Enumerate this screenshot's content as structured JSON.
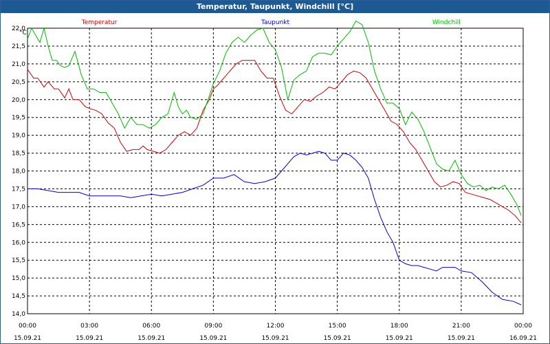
{
  "window": {
    "title": "Temperatur, Taupunkt, Windchill [°C]"
  },
  "chart_data": {
    "type": "line",
    "title": "Temperatur, Taupunkt, Windchill [°C]",
    "ylabel": "°C",
    "ylim": [
      14.0,
      22.0
    ],
    "yticks": [
      14.0,
      14.5,
      15.0,
      15.5,
      16.0,
      16.5,
      17.0,
      17.5,
      18.0,
      18.5,
      19.0,
      19.5,
      20.0,
      20.5,
      21.0,
      21.5,
      22.0
    ],
    "ytick_labels": [
      "14,0",
      "14,5",
      "15,0",
      "15,5",
      "16,0",
      "16,5",
      "17,0",
      "17,5",
      "18,0",
      "18,5",
      "19,0",
      "19,5",
      "20,0",
      "20,5",
      "21,0",
      "21,5",
      "22,0"
    ],
    "xlim": [
      0,
      24
    ],
    "xticks": [
      0,
      3,
      6,
      9,
      12,
      15,
      18,
      21,
      24
    ],
    "xtick_time_labels": [
      "00:00",
      "03:00",
      "06:00",
      "09:00",
      "12:00",
      "15:00",
      "18:00",
      "21:00",
      "00:00"
    ],
    "xtick_date_labels": [
      "15.09.21",
      "15.09.21",
      "15.09.21",
      "15.09.21",
      "15.09.21",
      "15.09.21",
      "15.09.21",
      "15.09.21",
      "16.09.21"
    ],
    "grid": true,
    "series": [
      {
        "name": "Temperatur",
        "color": "#cc0000",
        "x": [
          0,
          0.3,
          0.5,
          0.8,
          1.0,
          1.3,
          1.5,
          1.8,
          2.0,
          2.2,
          2.5,
          2.8,
          3.0,
          3.3,
          3.6,
          3.9,
          4.2,
          4.5,
          4.8,
          5.1,
          5.4,
          5.6,
          5.8,
          6.1,
          6.4,
          6.7,
          7.0,
          7.3,
          7.6,
          7.9,
          8.2,
          8.5,
          8.8,
          9.0,
          9.2,
          9.5,
          9.8,
          10.1,
          10.4,
          10.7,
          11.0,
          11.3,
          11.6,
          11.9,
          12.2,
          12.5,
          12.8,
          13.1,
          13.4,
          13.7,
          14.0,
          14.3,
          14.6,
          14.9,
          15.2,
          15.5,
          15.8,
          16.1,
          16.4,
          16.7,
          17.0,
          17.3,
          17.6,
          17.9,
          18.2,
          18.5,
          18.8,
          19.1,
          19.4,
          19.7,
          20.0,
          20.3,
          20.6,
          20.9,
          21.2,
          21.5,
          21.8,
          22.1,
          22.4,
          22.7,
          23.0,
          23.3,
          23.6,
          23.9
        ],
        "values": [
          20.85,
          20.6,
          20.6,
          20.35,
          20.5,
          20.3,
          20.3,
          20.05,
          20.3,
          20.0,
          20.0,
          19.8,
          19.75,
          19.7,
          19.6,
          19.35,
          19.2,
          18.8,
          18.55,
          18.6,
          18.6,
          18.7,
          18.6,
          18.55,
          18.5,
          18.6,
          18.8,
          19.0,
          19.1,
          19.0,
          19.2,
          19.7,
          20.0,
          20.3,
          20.4,
          20.6,
          20.8,
          21.0,
          21.1,
          21.1,
          21.1,
          20.8,
          20.6,
          20.6,
          20.1,
          19.7,
          19.6,
          19.8,
          20.0,
          19.95,
          20.1,
          20.2,
          20.35,
          20.3,
          20.5,
          20.7,
          20.8,
          20.75,
          20.6,
          20.3,
          20.0,
          19.7,
          19.4,
          19.3,
          19.1,
          18.8,
          18.6,
          18.3,
          18.0,
          17.7,
          17.55,
          17.6,
          17.7,
          17.65,
          17.4,
          17.35,
          17.3,
          17.25,
          17.2,
          17.1,
          17.0,
          16.9,
          16.75,
          16.55
        ]
      },
      {
        "name": "Taupunkt",
        "color": "#0000cc",
        "x": [
          0,
          0.5,
          1.0,
          1.5,
          2.0,
          2.5,
          3.0,
          3.5,
          4.0,
          4.5,
          5.0,
          5.5,
          6.0,
          6.5,
          7.0,
          7.5,
          8.0,
          8.5,
          9.0,
          9.5,
          10.0,
          10.5,
          11.0,
          11.5,
          12.0,
          12.3,
          12.6,
          12.9,
          13.2,
          13.5,
          13.8,
          14.1,
          14.4,
          14.7,
          15.0,
          15.3,
          15.6,
          15.9,
          16.2,
          16.5,
          16.8,
          17.1,
          17.4,
          17.7,
          18.0,
          18.3,
          18.6,
          18.9,
          19.2,
          19.5,
          19.8,
          20.1,
          20.4,
          20.7,
          21.0,
          21.5,
          22.0,
          22.5,
          23.0,
          23.5,
          23.9
        ],
        "values": [
          17.5,
          17.5,
          17.45,
          17.4,
          17.4,
          17.4,
          17.3,
          17.3,
          17.3,
          17.3,
          17.25,
          17.3,
          17.35,
          17.3,
          17.35,
          17.4,
          17.5,
          17.6,
          17.8,
          17.8,
          17.9,
          17.7,
          17.65,
          17.7,
          17.8,
          18.0,
          18.2,
          18.4,
          18.5,
          18.45,
          18.5,
          18.55,
          18.5,
          18.3,
          18.3,
          18.5,
          18.45,
          18.3,
          18.1,
          17.8,
          17.2,
          16.7,
          16.3,
          16.0,
          15.5,
          15.4,
          15.35,
          15.35,
          15.3,
          15.25,
          15.2,
          15.3,
          15.3,
          15.3,
          15.2,
          15.15,
          14.9,
          14.6,
          14.4,
          14.35,
          14.25
        ]
      },
      {
        "name": "Windchill",
        "color": "#00bb00",
        "x": [
          0,
          0.2,
          0.4,
          0.6,
          0.8,
          1.0,
          1.2,
          1.4,
          1.6,
          1.8,
          2.0,
          2.3,
          2.6,
          2.9,
          3.2,
          3.5,
          3.8,
          4.1,
          4.4,
          4.7,
          5.0,
          5.3,
          5.6,
          5.9,
          6.2,
          6.5,
          6.8,
          7.1,
          7.3,
          7.5,
          7.7,
          7.9,
          8.2,
          8.5,
          8.8,
          9.0,
          9.3,
          9.6,
          9.9,
          10.2,
          10.5,
          10.8,
          11.1,
          11.4,
          11.7,
          12.0,
          12.3,
          12.6,
          12.9,
          13.2,
          13.5,
          13.8,
          14.1,
          14.4,
          14.7,
          15.0,
          15.3,
          15.6,
          15.9,
          16.2,
          16.5,
          16.8,
          17.1,
          17.4,
          17.7,
          18.0,
          18.3,
          18.6,
          18.9,
          19.2,
          19.5,
          19.8,
          20.1,
          20.4,
          20.7,
          21.0,
          21.3,
          21.6,
          21.9,
          22.2,
          22.5,
          22.8,
          23.1,
          23.4,
          23.7,
          23.9
        ],
        "values": [
          21.7,
          22.0,
          21.8,
          21.6,
          22.0,
          21.5,
          21.1,
          21.1,
          20.95,
          20.9,
          20.95,
          21.35,
          20.7,
          20.3,
          20.3,
          20.2,
          20.2,
          19.9,
          19.6,
          19.2,
          19.5,
          19.3,
          19.3,
          19.2,
          19.3,
          19.5,
          19.6,
          20.2,
          19.8,
          19.6,
          19.7,
          19.5,
          19.45,
          19.6,
          20.1,
          20.45,
          20.8,
          21.3,
          21.6,
          21.75,
          21.6,
          21.8,
          21.95,
          22.0,
          21.6,
          21.4,
          20.9,
          20.0,
          20.55,
          20.7,
          20.8,
          21.2,
          21.3,
          21.3,
          21.25,
          21.5,
          21.7,
          21.9,
          22.2,
          22.1,
          21.6,
          20.8,
          20.3,
          19.9,
          19.9,
          19.75,
          19.3,
          19.65,
          19.45,
          19.1,
          18.65,
          18.2,
          18.05,
          18.0,
          18.3,
          17.9,
          17.65,
          17.55,
          17.6,
          17.45,
          17.55,
          17.5,
          17.6,
          17.35,
          17.05,
          16.75
        ]
      }
    ]
  }
}
